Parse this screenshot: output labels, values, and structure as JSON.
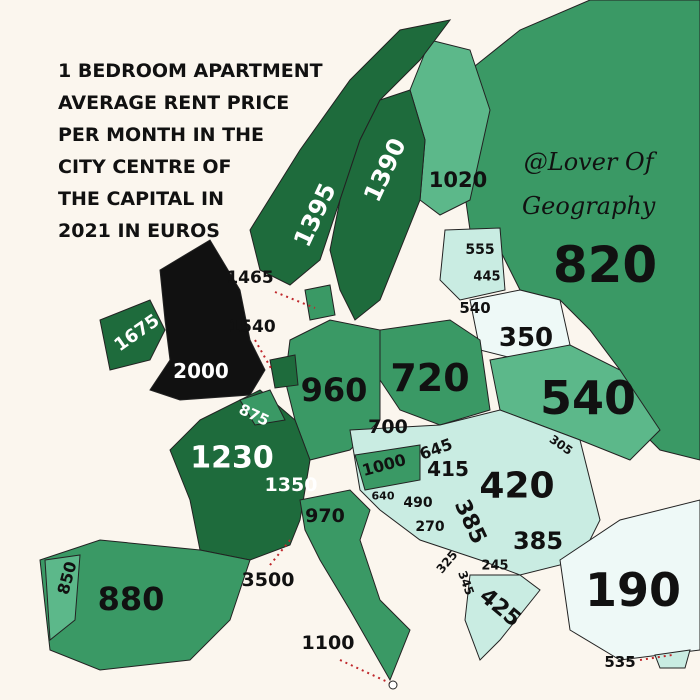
{
  "title": [
    "1 BEDROOM APARTMENT",
    "AVERAGE RENT PRICE",
    "PER MONTH IN THE",
    "CITY CENTRE OF",
    "THE CAPITAL IN",
    "2021 IN EUROS"
  ],
  "credit": [
    "@Lover Of",
    "Geography"
  ],
  "colors": {
    "background": "#fbf6ee",
    "darkest": "#1e6b3c",
    "dark": "#3a9965",
    "medium": "#5cb88a",
    "light": "#c9ece2",
    "lightest": "#eef9f7",
    "uk": "#111111"
  },
  "values": {
    "norway": "1395",
    "sweden": "1390",
    "finland": "1020",
    "russia": "820",
    "estonia": "555",
    "latvia": "445",
    "lithuania": "540",
    "belarus": "350",
    "ukraine": "540",
    "moldova": "305",
    "denmark": "1465",
    "netherlands": "1540",
    "ireland": "1675",
    "uk": "2000",
    "belgium": "875",
    "france": "1230",
    "germany": "960",
    "poland": "720",
    "czechia": "700",
    "austria": "1000",
    "slovakia": "645",
    "hungary": "415",
    "romania": "420",
    "switzerland": "1350",
    "italy": "970",
    "slovenia": "640",
    "croatia": "490",
    "bosnia": "270",
    "serbia": "385",
    "bulgaria": "385",
    "montenegro": "325",
    "albania": "345",
    "north_macedonia": "245",
    "greece": "425",
    "turkey": "190",
    "cyprus": "535",
    "monaco": "3500",
    "malta": "1100",
    "portugal": "850",
    "spain": "880"
  }
}
